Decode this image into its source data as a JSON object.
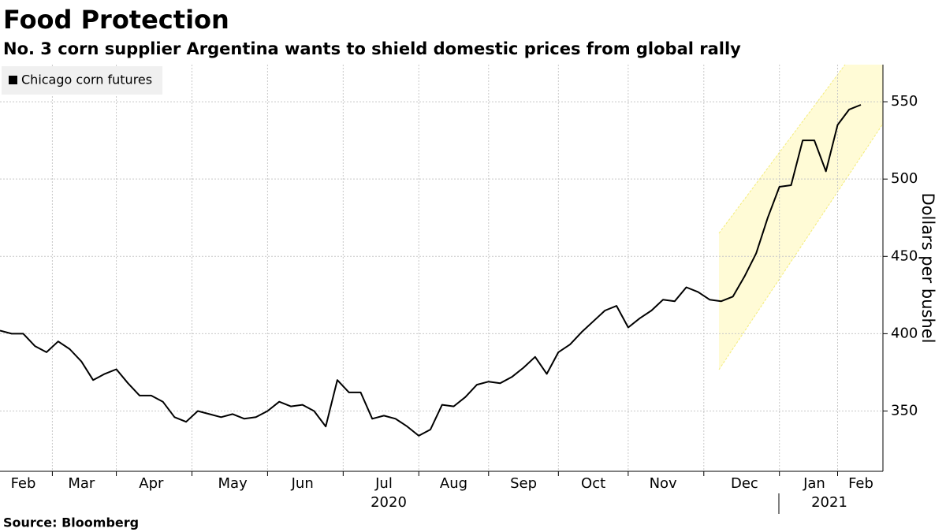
{
  "chart_data": {
    "type": "line",
    "title": "Food Protection",
    "subtitle": "No. 3 corn supplier Argentina wants to shield domestic prices from global rally",
    "y_axis_label": "Dollars per bushel",
    "source": "Source: Bloomberg",
    "x_group_labels": [
      "2020",
      "2021"
    ],
    "categories": [
      null,
      null,
      "Feb",
      null,
      null,
      null,
      null,
      "Mar",
      null,
      null,
      null,
      null,
      null,
      "Apr",
      null,
      null,
      null,
      null,
      null,
      null,
      "May",
      null,
      null,
      null,
      null,
      null,
      "Jun",
      null,
      null,
      null,
      null,
      null,
      null,
      "Jul",
      null,
      null,
      null,
      null,
      null,
      "Aug",
      null,
      null,
      null,
      null,
      null,
      "Sep",
      null,
      null,
      null,
      null,
      null,
      "Oct",
      null,
      null,
      null,
      null,
      null,
      "Nov",
      null,
      null,
      null,
      null,
      null,
      null,
      "Dec",
      null,
      null,
      null,
      null,
      null,
      "Jan",
      null,
      null,
      null,
      "Feb"
    ],
    "series": [
      {
        "name": "Chicago corn futures",
        "color": "#000000",
        "values": [
          402,
          400,
          400,
          392,
          388,
          395,
          390,
          382,
          370,
          374,
          377,
          368,
          360,
          360,
          356,
          346,
          343,
          350,
          348,
          346,
          348,
          345,
          346,
          350,
          356,
          353,
          354,
          350,
          340,
          370,
          362,
          362,
          345,
          347,
          345,
          340,
          334,
          338,
          354,
          353,
          359,
          367,
          369,
          368,
          372,
          378,
          385,
          374,
          388,
          393,
          401,
          408,
          415,
          418,
          404,
          410,
          415,
          422,
          421,
          430,
          427,
          422,
          421,
          424,
          437,
          452,
          475,
          495,
          496,
          525,
          525,
          505,
          535,
          545,
          548
        ]
      }
    ],
    "ylim": [
      311,
      574
    ],
    "yticks": [
      350,
      400,
      450,
      500,
      550
    ],
    "grid": true,
    "legend": "top-left"
  }
}
